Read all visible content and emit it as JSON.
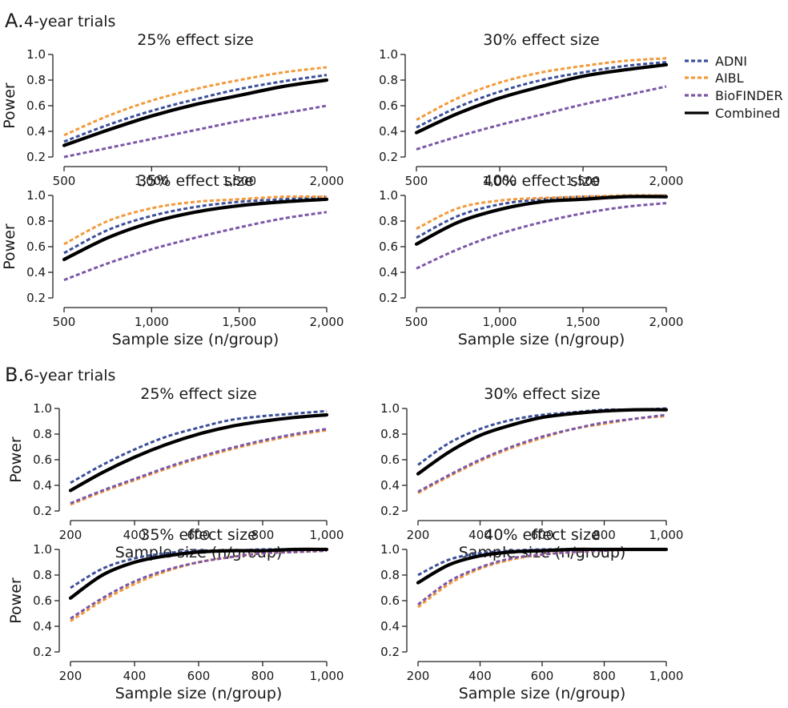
{
  "sections": [
    {
      "letter": "A.",
      "title": "4-year trials"
    },
    {
      "letter": "B.",
      "title": "6-year trials"
    }
  ],
  "legend": [
    {
      "name": "ADNI",
      "color": "#3b4f9a",
      "style": "dotted"
    },
    {
      "name": "AIBL",
      "color": "#f29a3a",
      "style": "dotted"
    },
    {
      "name": "BioFINDER",
      "color": "#7b57a8",
      "style": "dotted"
    },
    {
      "name": "Combined",
      "color": "#000000",
      "style": "solid"
    }
  ],
  "chart_data": [
    {
      "type": "line",
      "section": 0,
      "title": "25% effect size",
      "xlabel": "",
      "ylabel": "Power",
      "xlim": [
        500,
        2000
      ],
      "ylim": [
        0.2,
        1.0
      ],
      "xticks": [
        500,
        1000,
        1500,
        2000
      ],
      "xtick_labels": [
        "500",
        "1,000",
        "1,500",
        "2,000"
      ],
      "yticks": [
        0.2,
        0.4,
        0.6,
        0.8,
        1.0
      ],
      "ytick_labels": [
        "0.2",
        "0.4",
        "0.6",
        "0.8",
        "1.0"
      ],
      "x": [
        500,
        750,
        1000,
        1250,
        1500,
        1750,
        2000
      ],
      "series": [
        {
          "name": "ADNI",
          "values": [
            0.32,
            0.45,
            0.56,
            0.65,
            0.73,
            0.79,
            0.84
          ]
        },
        {
          "name": "AIBL",
          "values": [
            0.37,
            0.52,
            0.64,
            0.73,
            0.8,
            0.86,
            0.9
          ]
        },
        {
          "name": "BioFINDER",
          "values": [
            0.2,
            0.27,
            0.34,
            0.41,
            0.48,
            0.54,
            0.6
          ]
        },
        {
          "name": "Combined",
          "values": [
            0.29,
            0.41,
            0.52,
            0.61,
            0.68,
            0.75,
            0.8
          ]
        }
      ]
    },
    {
      "type": "line",
      "section": 0,
      "title": "30% effect size",
      "xlabel": "",
      "ylabel": "",
      "xlim": [
        500,
        2000
      ],
      "ylim": [
        0.2,
        1.0
      ],
      "xticks": [
        500,
        1000,
        1500,
        2000
      ],
      "xtick_labels": [
        "500",
        "1,000",
        "1,500",
        "2,000"
      ],
      "yticks": [
        0.2,
        0.4,
        0.6,
        0.8,
        1.0
      ],
      "ytick_labels": [
        "0.2",
        "0.4",
        "0.6",
        "0.8",
        "1.0"
      ],
      "x": [
        500,
        750,
        1000,
        1250,
        1500,
        1750,
        2000
      ],
      "series": [
        {
          "name": "ADNI",
          "values": [
            0.43,
            0.59,
            0.71,
            0.8,
            0.86,
            0.91,
            0.94
          ]
        },
        {
          "name": "AIBL",
          "values": [
            0.49,
            0.66,
            0.78,
            0.86,
            0.91,
            0.95,
            0.97
          ]
        },
        {
          "name": "BioFINDER",
          "values": [
            0.26,
            0.36,
            0.45,
            0.53,
            0.61,
            0.68,
            0.75
          ]
        },
        {
          "name": "Combined",
          "values": [
            0.39,
            0.54,
            0.66,
            0.75,
            0.83,
            0.88,
            0.92
          ]
        }
      ]
    },
    {
      "type": "line",
      "section": 0,
      "title": "35% effect size",
      "xlabel": "Sample size (n/group)",
      "ylabel": "Power",
      "xlim": [
        500,
        2000
      ],
      "ylim": [
        0.2,
        1.0
      ],
      "xticks": [
        500,
        1000,
        1500,
        2000
      ],
      "xtick_labels": [
        "500",
        "1,000",
        "1,500",
        "2,000"
      ],
      "yticks": [
        0.2,
        0.4,
        0.6,
        0.8,
        1.0
      ],
      "ytick_labels": [
        "0.2",
        "0.4",
        "0.6",
        "0.8",
        "1.0"
      ],
      "x": [
        500,
        750,
        1000,
        1250,
        1500,
        1750,
        2000
      ],
      "series": [
        {
          "name": "ADNI",
          "values": [
            0.55,
            0.73,
            0.84,
            0.91,
            0.95,
            0.97,
            0.99
          ]
        },
        {
          "name": "AIBL",
          "values": [
            0.62,
            0.8,
            0.9,
            0.95,
            0.97,
            0.99,
            0.99
          ]
        },
        {
          "name": "BioFINDER",
          "values": [
            0.34,
            0.47,
            0.58,
            0.67,
            0.75,
            0.82,
            0.87
          ]
        },
        {
          "name": "Combined",
          "values": [
            0.5,
            0.67,
            0.79,
            0.87,
            0.92,
            0.95,
            0.97
          ]
        }
      ]
    },
    {
      "type": "line",
      "section": 0,
      "title": "40% effect size",
      "xlabel": "Sample size (n/group)",
      "ylabel": "",
      "xlim": [
        500,
        2000
      ],
      "ylim": [
        0.2,
        1.0
      ],
      "xticks": [
        500,
        1000,
        1500,
        2000
      ],
      "xtick_labels": [
        "500",
        "1,000",
        "1,500",
        "2,000"
      ],
      "yticks": [
        0.2,
        0.4,
        0.6,
        0.8,
        1.0
      ],
      "ytick_labels": [
        "0.2",
        "0.4",
        "0.6",
        "0.8",
        "1.0"
      ],
      "x": [
        500,
        750,
        1000,
        1250,
        1500,
        1750,
        2000
      ],
      "series": [
        {
          "name": "ADNI",
          "values": [
            0.67,
            0.84,
            0.93,
            0.97,
            0.99,
            0.99,
            1.0
          ]
        },
        {
          "name": "AIBL",
          "values": [
            0.74,
            0.9,
            0.96,
            0.98,
            0.99,
            1.0,
            1.0
          ]
        },
        {
          "name": "BioFINDER",
          "values": [
            0.43,
            0.58,
            0.7,
            0.79,
            0.86,
            0.91,
            0.94
          ]
        },
        {
          "name": "Combined",
          "values": [
            0.62,
            0.79,
            0.89,
            0.95,
            0.97,
            0.99,
            0.99
          ]
        }
      ]
    },
    {
      "type": "line",
      "section": 1,
      "title": "25% effect size",
      "xlabel": "Sample size (n/group)",
      "ylabel": "Power",
      "xlim": [
        200,
        1000
      ],
      "ylim": [
        0.2,
        1.0
      ],
      "xticks": [
        200,
        400,
        600,
        800,
        1000
      ],
      "xtick_labels": [
        "200",
        "400",
        "600",
        "800",
        "1,000"
      ],
      "yticks": [
        0.2,
        0.4,
        0.6,
        0.8,
        1.0
      ],
      "ytick_labels": [
        "0.2",
        "0.4",
        "0.6",
        "0.8",
        "1.0"
      ],
      "x": [
        200,
        300,
        400,
        500,
        600,
        700,
        800,
        900,
        1000
      ],
      "series": [
        {
          "name": "ADNI",
          "values": [
            0.42,
            0.56,
            0.68,
            0.78,
            0.85,
            0.91,
            0.94,
            0.96,
            0.98
          ]
        },
        {
          "name": "AIBL",
          "values": [
            0.25,
            0.35,
            0.44,
            0.53,
            0.61,
            0.68,
            0.74,
            0.79,
            0.83
          ]
        },
        {
          "name": "BioFINDER",
          "values": [
            0.26,
            0.36,
            0.45,
            0.54,
            0.62,
            0.69,
            0.75,
            0.8,
            0.84
          ]
        },
        {
          "name": "Combined",
          "values": [
            0.36,
            0.5,
            0.62,
            0.72,
            0.8,
            0.86,
            0.9,
            0.93,
            0.95
          ]
        }
      ]
    },
    {
      "type": "line",
      "section": 1,
      "title": "30% effect size",
      "xlabel": "Sample size (n/group)",
      "ylabel": "",
      "xlim": [
        200,
        1000
      ],
      "ylim": [
        0.2,
        1.0
      ],
      "xticks": [
        200,
        400,
        600,
        800,
        1000
      ],
      "xtick_labels": [
        "200",
        "400",
        "600",
        "800",
        "1,000"
      ],
      "yticks": [
        0.2,
        0.4,
        0.6,
        0.8,
        1.0
      ],
      "ytick_labels": [
        "0.2",
        "0.4",
        "0.6",
        "0.8",
        "1.0"
      ],
      "x": [
        200,
        300,
        400,
        500,
        600,
        700,
        800,
        900,
        1000
      ],
      "series": [
        {
          "name": "ADNI",
          "values": [
            0.56,
            0.73,
            0.84,
            0.91,
            0.95,
            0.97,
            0.99,
            0.99,
            1.0
          ]
        },
        {
          "name": "AIBL",
          "values": [
            0.34,
            0.47,
            0.59,
            0.69,
            0.77,
            0.84,
            0.88,
            0.92,
            0.94
          ]
        },
        {
          "name": "BioFINDER",
          "values": [
            0.35,
            0.48,
            0.6,
            0.7,
            0.78,
            0.84,
            0.89,
            0.92,
            0.95
          ]
        },
        {
          "name": "Combined",
          "values": [
            0.49,
            0.66,
            0.79,
            0.87,
            0.93,
            0.96,
            0.98,
            0.99,
            0.99
          ]
        }
      ]
    },
    {
      "type": "line",
      "section": 1,
      "title": "35% effect size",
      "xlabel": "Sample size (n/group)",
      "ylabel": "Power",
      "xlim": [
        200,
        1000
      ],
      "ylim": [
        0.2,
        1.0
      ],
      "xticks": [
        200,
        400,
        600,
        800,
        1000
      ],
      "xtick_labels": [
        "200",
        "400",
        "600",
        "800",
        "1,000"
      ],
      "yticks": [
        0.2,
        0.4,
        0.6,
        0.8,
        1.0
      ],
      "ytick_labels": [
        "0.2",
        "0.4",
        "0.6",
        "0.8",
        "1.0"
      ],
      "x": [
        200,
        300,
        400,
        500,
        600,
        700,
        800,
        900,
        1000
      ],
      "series": [
        {
          "name": "ADNI",
          "values": [
            0.7,
            0.85,
            0.93,
            0.97,
            0.99,
            0.99,
            1.0,
            1.0,
            1.0
          ]
        },
        {
          "name": "AIBL",
          "values": [
            0.44,
            0.6,
            0.73,
            0.83,
            0.9,
            0.94,
            0.97,
            0.98,
            0.99
          ]
        },
        {
          "name": "BioFINDER",
          "values": [
            0.46,
            0.62,
            0.75,
            0.84,
            0.9,
            0.94,
            0.97,
            0.98,
            0.99
          ]
        },
        {
          "name": "Combined",
          "values": [
            0.62,
            0.8,
            0.9,
            0.95,
            0.98,
            0.99,
            0.99,
            1.0,
            1.0
          ]
        }
      ]
    },
    {
      "type": "line",
      "section": 1,
      "title": "40% effect size",
      "xlabel": "Sample size (n/group)",
      "ylabel": "",
      "xlim": [
        200,
        1000
      ],
      "ylim": [
        0.2,
        1.0
      ],
      "xticks": [
        200,
        400,
        600,
        800,
        1000
      ],
      "xtick_labels": [
        "200",
        "400",
        "600",
        "800",
        "1,000"
      ],
      "yticks": [
        0.2,
        0.4,
        0.6,
        0.8,
        1.0
      ],
      "ytick_labels": [
        "0.2",
        "0.4",
        "0.6",
        "0.8",
        "1.0"
      ],
      "x": [
        200,
        300,
        400,
        500,
        600,
        700,
        800,
        900,
        1000
      ],
      "series": [
        {
          "name": "ADNI",
          "values": [
            0.8,
            0.92,
            0.97,
            0.99,
            1.0,
            1.0,
            1.0,
            1.0,
            1.0
          ]
        },
        {
          "name": "AIBL",
          "values": [
            0.55,
            0.73,
            0.85,
            0.92,
            0.96,
            0.98,
            0.99,
            1.0,
            1.0
          ]
        },
        {
          "name": "BioFINDER",
          "values": [
            0.57,
            0.75,
            0.86,
            0.93,
            0.96,
            0.98,
            0.99,
            1.0,
            1.0
          ]
        },
        {
          "name": "Combined",
          "values": [
            0.74,
            0.88,
            0.95,
            0.98,
            0.99,
            1.0,
            1.0,
            1.0,
            1.0
          ]
        }
      ]
    }
  ]
}
